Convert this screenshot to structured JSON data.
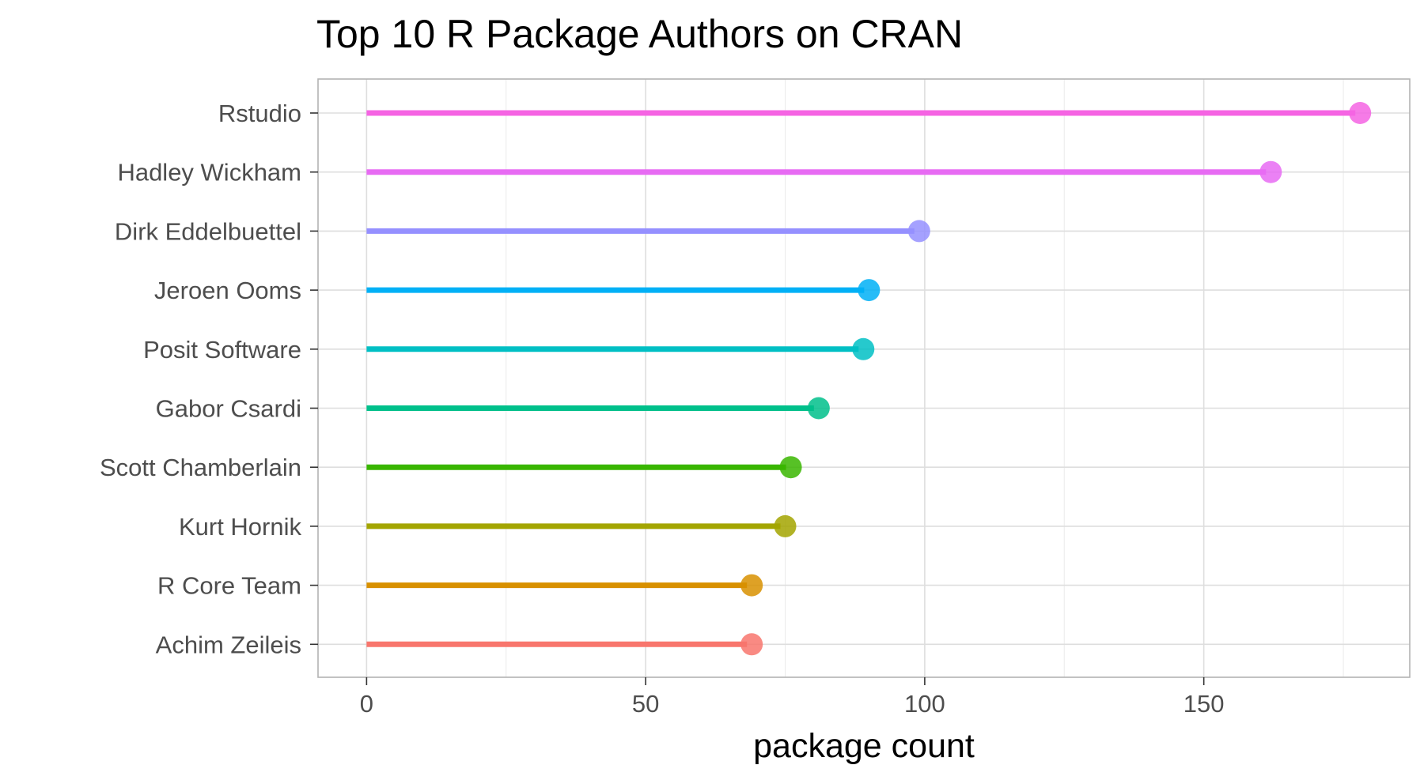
{
  "chart_data": {
    "type": "lollipop",
    "title": "Top 10 R Package Authors on CRAN",
    "xlabel": "package count",
    "ylabel": "",
    "xlim": [
      -8.7,
      186.9
    ],
    "xticks": [
      0,
      50,
      100,
      150
    ],
    "xtick_labels": [
      "0",
      "50",
      "100",
      "150"
    ],
    "grid": true,
    "legend": "none",
    "categories": [
      "Rstudio",
      "Hadley Wickham",
      "Dirk Eddelbuettel",
      "Jeroen Ooms",
      "Posit Software",
      "Gabor Csardi",
      "Scott Chamberlain",
      "Kurt Hornik",
      "R Core Team",
      "Achim Zeileis"
    ],
    "values": [
      178,
      162,
      99,
      90,
      89,
      81,
      76,
      75,
      69,
      69
    ],
    "colors": [
      "#F564E3",
      "#E76BF3",
      "#9590FF",
      "#00B0F6",
      "#00BFC4",
      "#00C08B",
      "#39B600",
      "#A3A500",
      "#D89000",
      "#F8766D"
    ]
  }
}
